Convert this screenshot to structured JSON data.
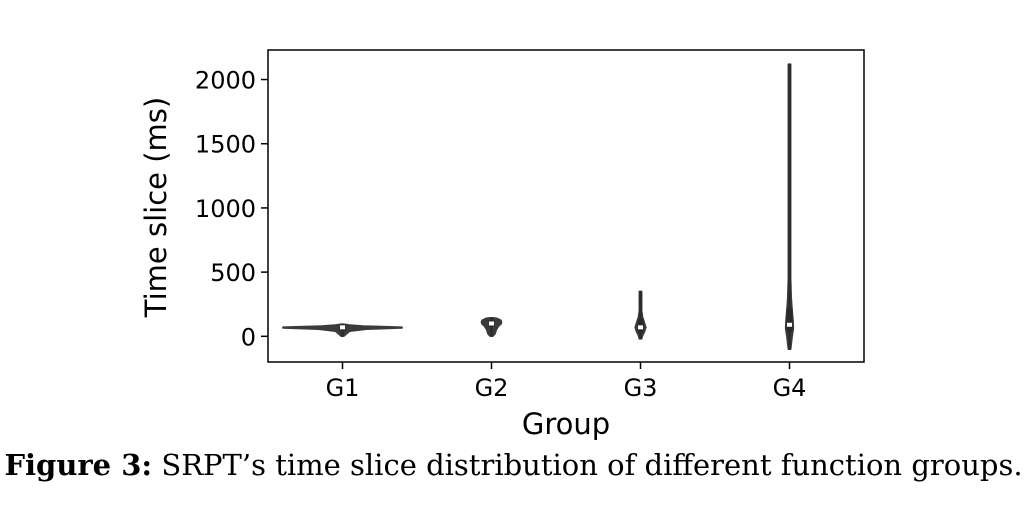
{
  "chart_data": {
    "type": "violin",
    "xlabel": "Group",
    "ylabel": "Time slice (ms)",
    "categories": [
      "G1",
      "G2",
      "G3",
      "G4"
    ],
    "yticks": [
      0,
      500,
      1000,
      1500,
      2000
    ],
    "ylim": [
      -200,
      2230
    ],
    "grid": false,
    "violins": [
      {
        "category": "G1",
        "min": 0,
        "q1": 45,
        "median": 70,
        "q3": 85,
        "max": 95,
        "density": [
          [
            0,
            0.02
          ],
          [
            40,
            0.12
          ],
          [
            55,
            0.4
          ],
          [
            65,
            1.0
          ],
          [
            72,
            1.0
          ],
          [
            80,
            0.35
          ],
          [
            88,
            0.12
          ],
          [
            95,
            0.02
          ]
        ]
      },
      {
        "category": "G2",
        "min": 0,
        "q1": 75,
        "median": 100,
        "q3": 125,
        "max": 145,
        "density": [
          [
            0,
            0.02
          ],
          [
            20,
            0.06
          ],
          [
            50,
            0.08
          ],
          [
            80,
            0.12
          ],
          [
            95,
            0.16
          ],
          [
            110,
            0.17
          ],
          [
            125,
            0.16
          ],
          [
            140,
            0.09
          ],
          [
            145,
            0.02
          ]
        ]
      },
      {
        "category": "G3",
        "min": -20,
        "q1": 30,
        "median": 70,
        "q3": 135,
        "max": 350,
        "density": [
          [
            -20,
            0.005
          ],
          [
            0,
            0.03
          ],
          [
            40,
            0.07
          ],
          [
            70,
            0.09
          ],
          [
            100,
            0.07
          ],
          [
            150,
            0.035
          ],
          [
            200,
            0.02
          ],
          [
            260,
            0.012
          ],
          [
            320,
            0.006
          ],
          [
            350,
            0.003
          ]
        ]
      },
      {
        "category": "G4",
        "min": -100,
        "q1": 35,
        "median": 90,
        "q3": 220,
        "max": 2120,
        "density": [
          [
            -100,
            0.01
          ],
          [
            0,
            0.045
          ],
          [
            60,
            0.065
          ],
          [
            120,
            0.06
          ],
          [
            200,
            0.045
          ],
          [
            300,
            0.03
          ],
          [
            450,
            0.02
          ],
          [
            600,
            0.012
          ],
          [
            800,
            0.008
          ],
          [
            1000,
            0.007
          ],
          [
            1500,
            0.005
          ],
          [
            2000,
            0.004
          ],
          [
            2120,
            0.003
          ]
        ]
      }
    ]
  },
  "caption": {
    "label": "Figure 3:",
    "text": " SRPT’s time slice distribution of different function groups."
  }
}
